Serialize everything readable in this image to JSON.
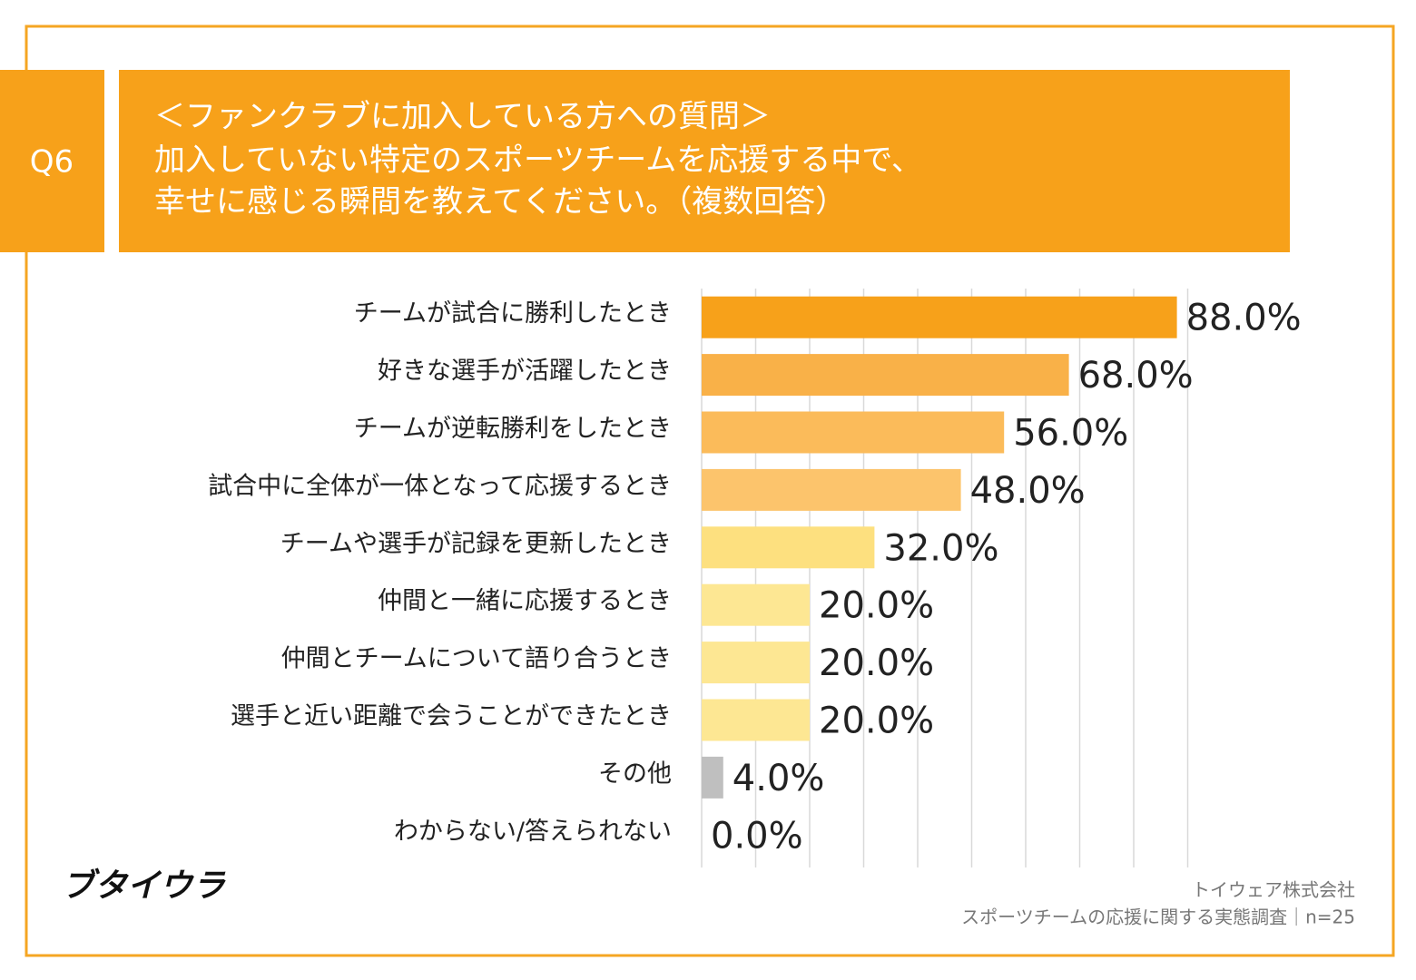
{
  "header": {
    "label": "Q6",
    "title": [
      "＜ファンクラブに加入している方への質問＞",
      "加入していない特定のスポーツチームを応援する中で、",
      "幸せに感じる瞬間を教えてください。（複数回答）"
    ]
  },
  "chart_data": {
    "type": "hbar",
    "categories": [
      "チームが試合に勝利したとき",
      "好きな選手が活躍したとき",
      "チームが逆転勝利をしたとき",
      "試合中に全体が一体となって応援するとき",
      "チームや選手が記録を更新したとき",
      "仲間と一緒に応援するとき",
      "仲間とチームについて語り合うとき",
      "選手と近い距離で会うことができたとき",
      "その他",
      "わからない/答えられない"
    ],
    "values": [
      88,
      68,
      56,
      48,
      32,
      20,
      20,
      20,
      4,
      0
    ],
    "value_labels": [
      "88.0%",
      "68.0%",
      "56.0%",
      "48.0%",
      "32.0%",
      "20.0%",
      "20.0%",
      "20.0%",
      "4.0%",
      "0.0%"
    ],
    "colors": [
      "#f7a11a",
      "#f9b148",
      "#fbbb5a",
      "#fcc46c",
      "#fde07f",
      "#fde793",
      "#fde793",
      "#fde793",
      "#bfbfbf",
      "#bfbfbf"
    ],
    "xlim": [
      0,
      90
    ],
    "xticks": [
      0,
      10,
      20,
      30,
      40,
      50,
      60,
      70,
      80,
      90
    ],
    "grid": true
  },
  "logo": "ブタイウラ",
  "footer": [
    "トイウェア株式会社",
    "スポーツチームの応援に関する実態調査｜n=25"
  ]
}
